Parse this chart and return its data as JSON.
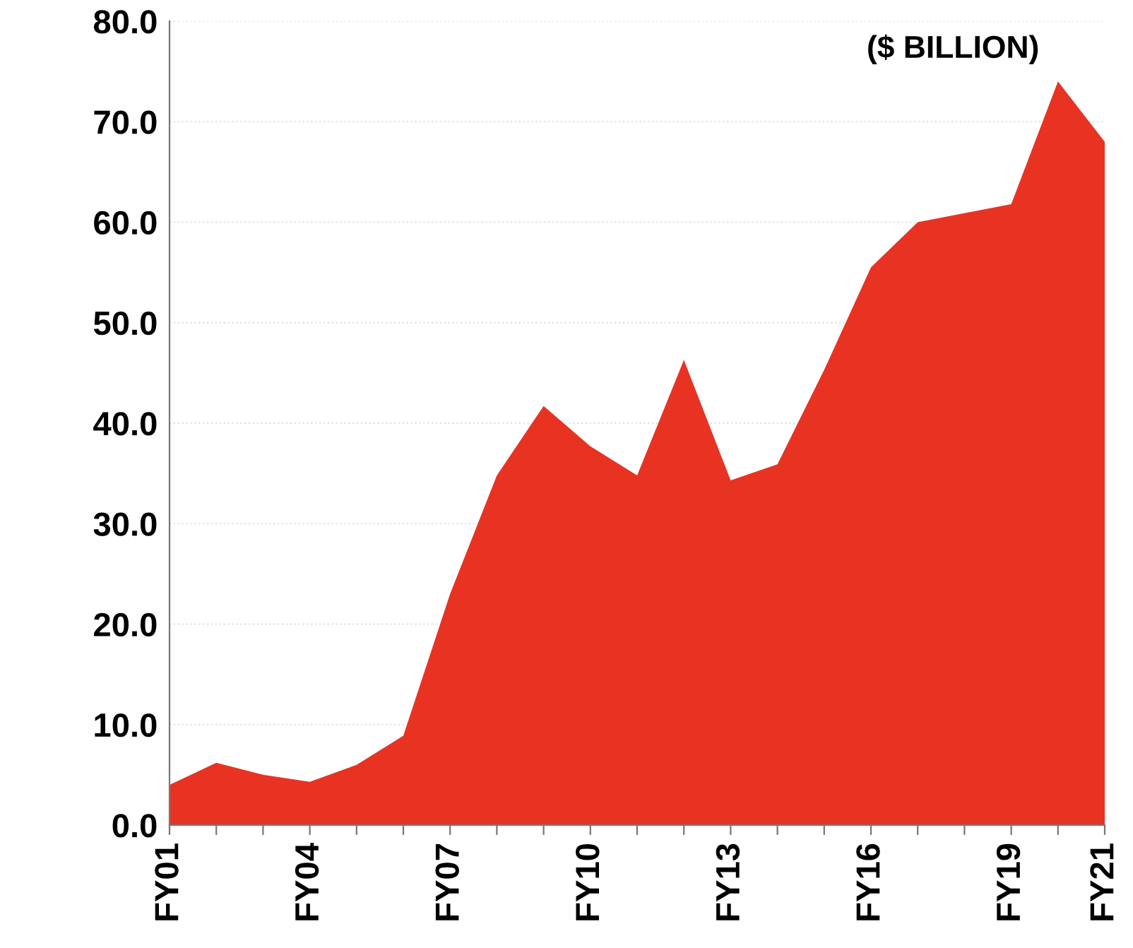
{
  "chart_data": {
    "type": "area",
    "categories": [
      "FY01",
      null,
      null,
      "FY04",
      null,
      null,
      "FY07",
      null,
      null,
      "FY10",
      null,
      null,
      "FY13",
      null,
      null,
      "FY16",
      null,
      null,
      "FY19",
      null,
      "FY21"
    ],
    "series": [
      {
        "color": "#e83323",
        "values": [
          4.0,
          6.2,
          5.0,
          4.3,
          6.0,
          8.9,
          23.0,
          34.8,
          41.7,
          37.7,
          34.8,
          46.3,
          34.3,
          35.9,
          45.3,
          55.5,
          60.0,
          60.9,
          61.8,
          74.0,
          68.0
        ]
      }
    ],
    "ylim": [
      0,
      80
    ],
    "yticks": [
      {
        "value": 0,
        "label": "0.0"
      },
      {
        "value": 10,
        "label": "10.0"
      },
      {
        "value": 20,
        "label": "20.0"
      },
      {
        "value": 30,
        "label": "30.0"
      },
      {
        "value": 40,
        "label": "40.0"
      },
      {
        "value": 50,
        "label": "50.0"
      },
      {
        "value": 60,
        "label": "60.0"
      },
      {
        "value": 70,
        "label": "70.0"
      },
      {
        "value": 80,
        "label": "80.0"
      }
    ],
    "grid": "y",
    "annotations": [
      "($ BILLION)"
    ]
  }
}
